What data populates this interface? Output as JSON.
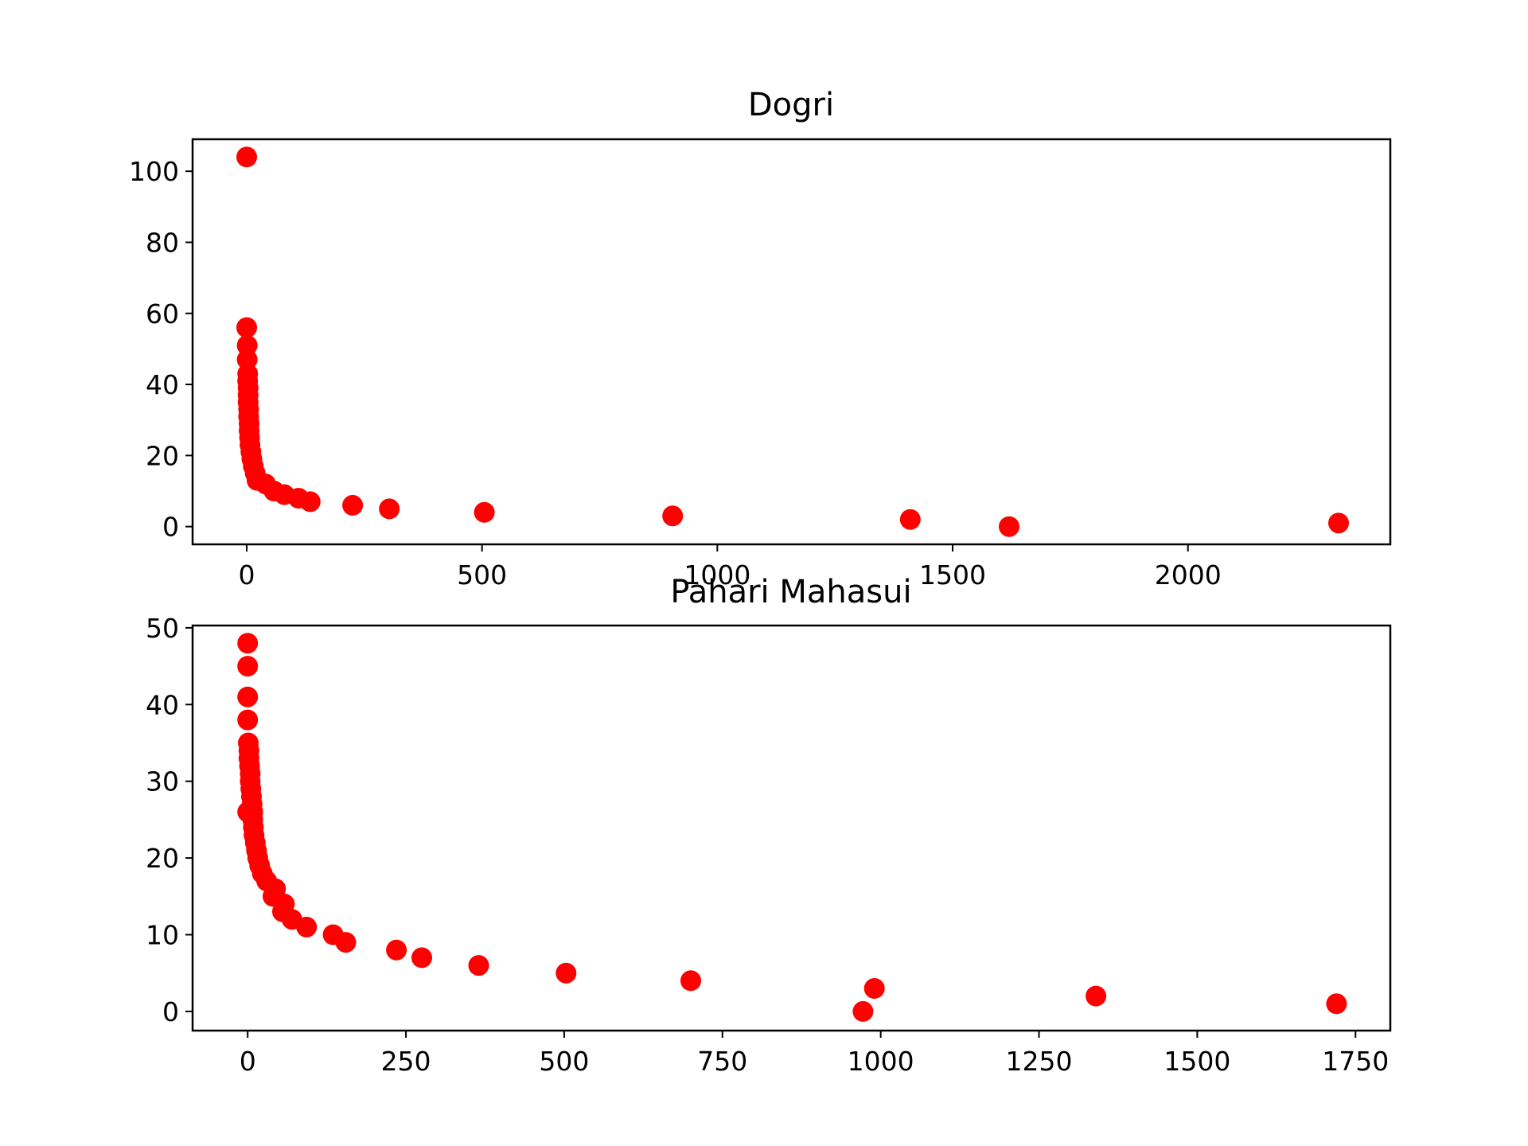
{
  "chart_data": [
    {
      "type": "scatter",
      "title": "Dogri",
      "xlabel": "",
      "ylabel": "",
      "xlim": [
        -115,
        2430
      ],
      "ylim": [
        -5,
        109
      ],
      "xticks": [
        0,
        500,
        1000,
        1500,
        2000
      ],
      "yticks": [
        0,
        20,
        40,
        60,
        80,
        100
      ],
      "marker_color": "#ff0000",
      "grid": false,
      "points": [
        [
          0,
          104
        ],
        [
          0,
          56
        ],
        [
          1,
          51
        ],
        [
          1,
          47
        ],
        [
          2,
          43
        ],
        [
          2,
          41
        ],
        [
          3,
          39
        ],
        [
          3,
          37
        ],
        [
          3,
          35
        ],
        [
          4,
          33
        ],
        [
          4,
          31
        ],
        [
          5,
          29
        ],
        [
          5,
          27
        ],
        [
          6,
          25
        ],
        [
          7,
          23
        ],
        [
          9,
          21
        ],
        [
          11,
          19
        ],
        [
          14,
          17
        ],
        [
          18,
          15
        ],
        [
          22,
          13
        ],
        [
          40,
          12
        ],
        [
          58,
          10
        ],
        [
          80,
          9
        ],
        [
          110,
          8
        ],
        [
          135,
          7
        ],
        [
          225,
          6
        ],
        [
          303,
          5
        ],
        [
          505,
          4
        ],
        [
          905,
          3
        ],
        [
          1410,
          2
        ],
        [
          2320,
          1
        ],
        [
          1620,
          0
        ]
      ]
    },
    {
      "type": "scatter",
      "title": "Pahari Mahasui",
      "xlabel": "",
      "ylabel": "",
      "xlim": [
        -87,
        1805
      ],
      "ylim": [
        -2.5,
        50.3
      ],
      "xticks": [
        0,
        250,
        500,
        750,
        1000,
        1250,
        1500,
        1750
      ],
      "yticks": [
        0,
        10,
        20,
        30,
        40,
        50
      ],
      "marker_color": "#ff0000",
      "grid": false,
      "points": [
        [
          0,
          48
        ],
        [
          0,
          45
        ],
        [
          0,
          41
        ],
        [
          0,
          38
        ],
        [
          1,
          35
        ],
        [
          2,
          34
        ],
        [
          2,
          33
        ],
        [
          3,
          32
        ],
        [
          4,
          31
        ],
        [
          4,
          30
        ],
        [
          5,
          29
        ],
        [
          6,
          28
        ],
        [
          7,
          27
        ],
        [
          8,
          26
        ],
        [
          0,
          26
        ],
        [
          8,
          25
        ],
        [
          9,
          24
        ],
        [
          10,
          23
        ],
        [
          12,
          22
        ],
        [
          14,
          21
        ],
        [
          16,
          20
        ],
        [
          19,
          19
        ],
        [
          23,
          18
        ],
        [
          30,
          17
        ],
        [
          44,
          16
        ],
        [
          40,
          15
        ],
        [
          58,
          14
        ],
        [
          55,
          13
        ],
        [
          70,
          12
        ],
        [
          93,
          11
        ],
        [
          135,
          10
        ],
        [
          155,
          9
        ],
        [
          235,
          8
        ],
        [
          275,
          7
        ],
        [
          365,
          6
        ],
        [
          503,
          5
        ],
        [
          700,
          4
        ],
        [
          990,
          3
        ],
        [
          1340,
          2
        ],
        [
          1720,
          1
        ],
        [
          972,
          0
        ]
      ]
    }
  ]
}
